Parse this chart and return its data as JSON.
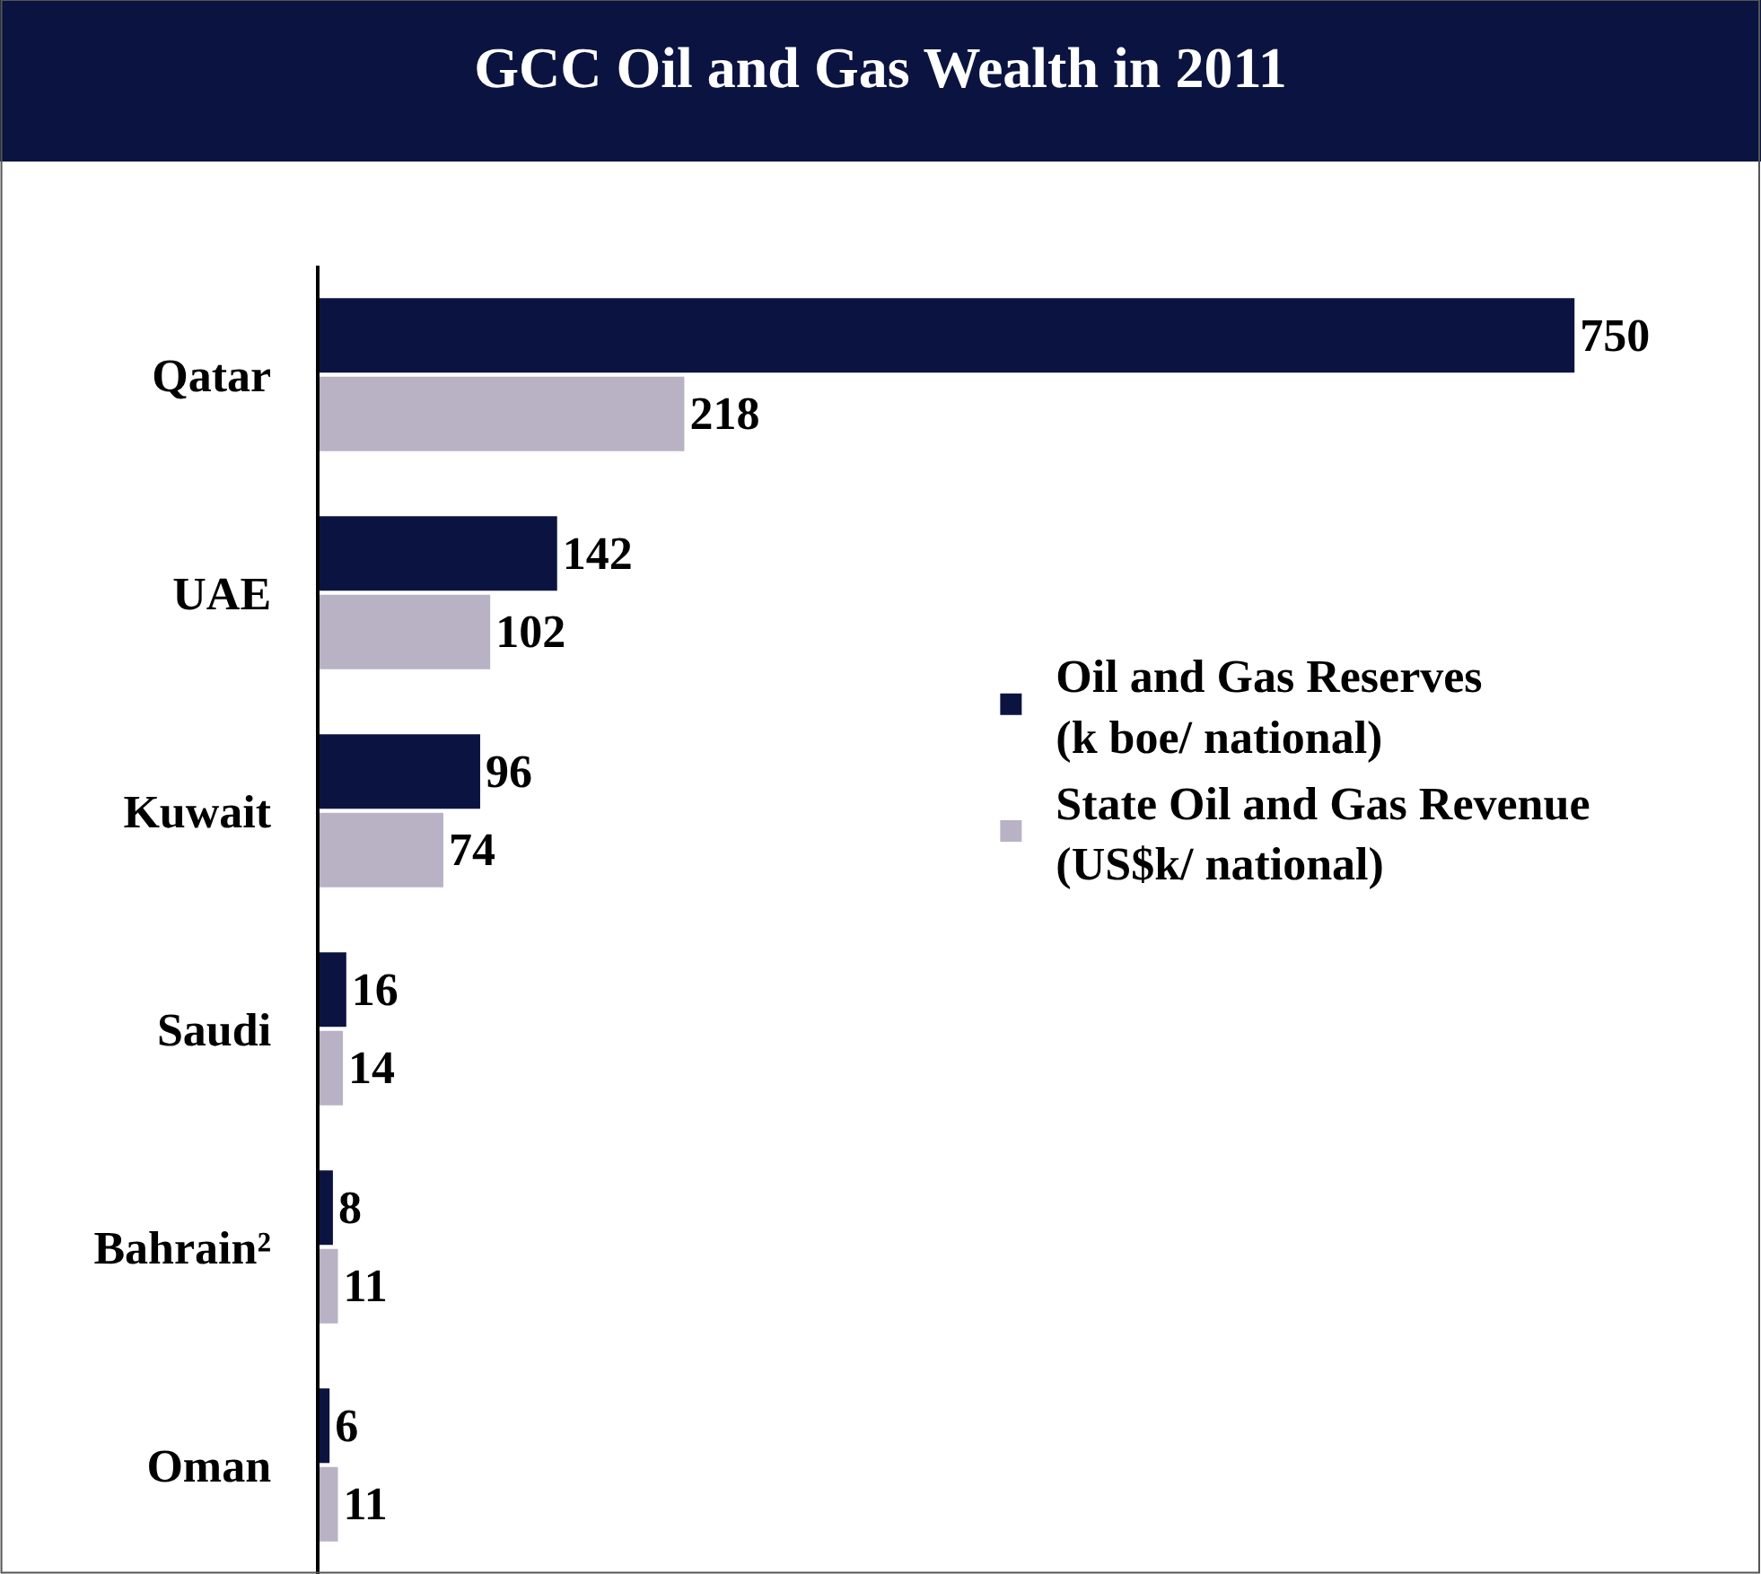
{
  "chart_data": {
    "type": "bar",
    "orientation": "horizontal",
    "title": "GCC Oil and Gas Wealth in 2011",
    "categories": [
      "Qatar",
      "UAE",
      "Kuwait",
      "Saudi",
      "Bahrain²",
      "Oman"
    ],
    "series": [
      {
        "name": "Oil and Gas Reserves\n(k boe/ national)",
        "color": "#0b1441",
        "values": [
          750,
          142,
          96,
          16,
          8,
          6
        ]
      },
      {
        "name": "State Oil and Gas Revenue\n(US$k/ national)",
        "color": "#b9b2c5",
        "values": [
          218,
          102,
          74,
          14,
          11,
          11
        ]
      }
    ],
    "data_labels": true,
    "legend": "right",
    "grid": false
  }
}
